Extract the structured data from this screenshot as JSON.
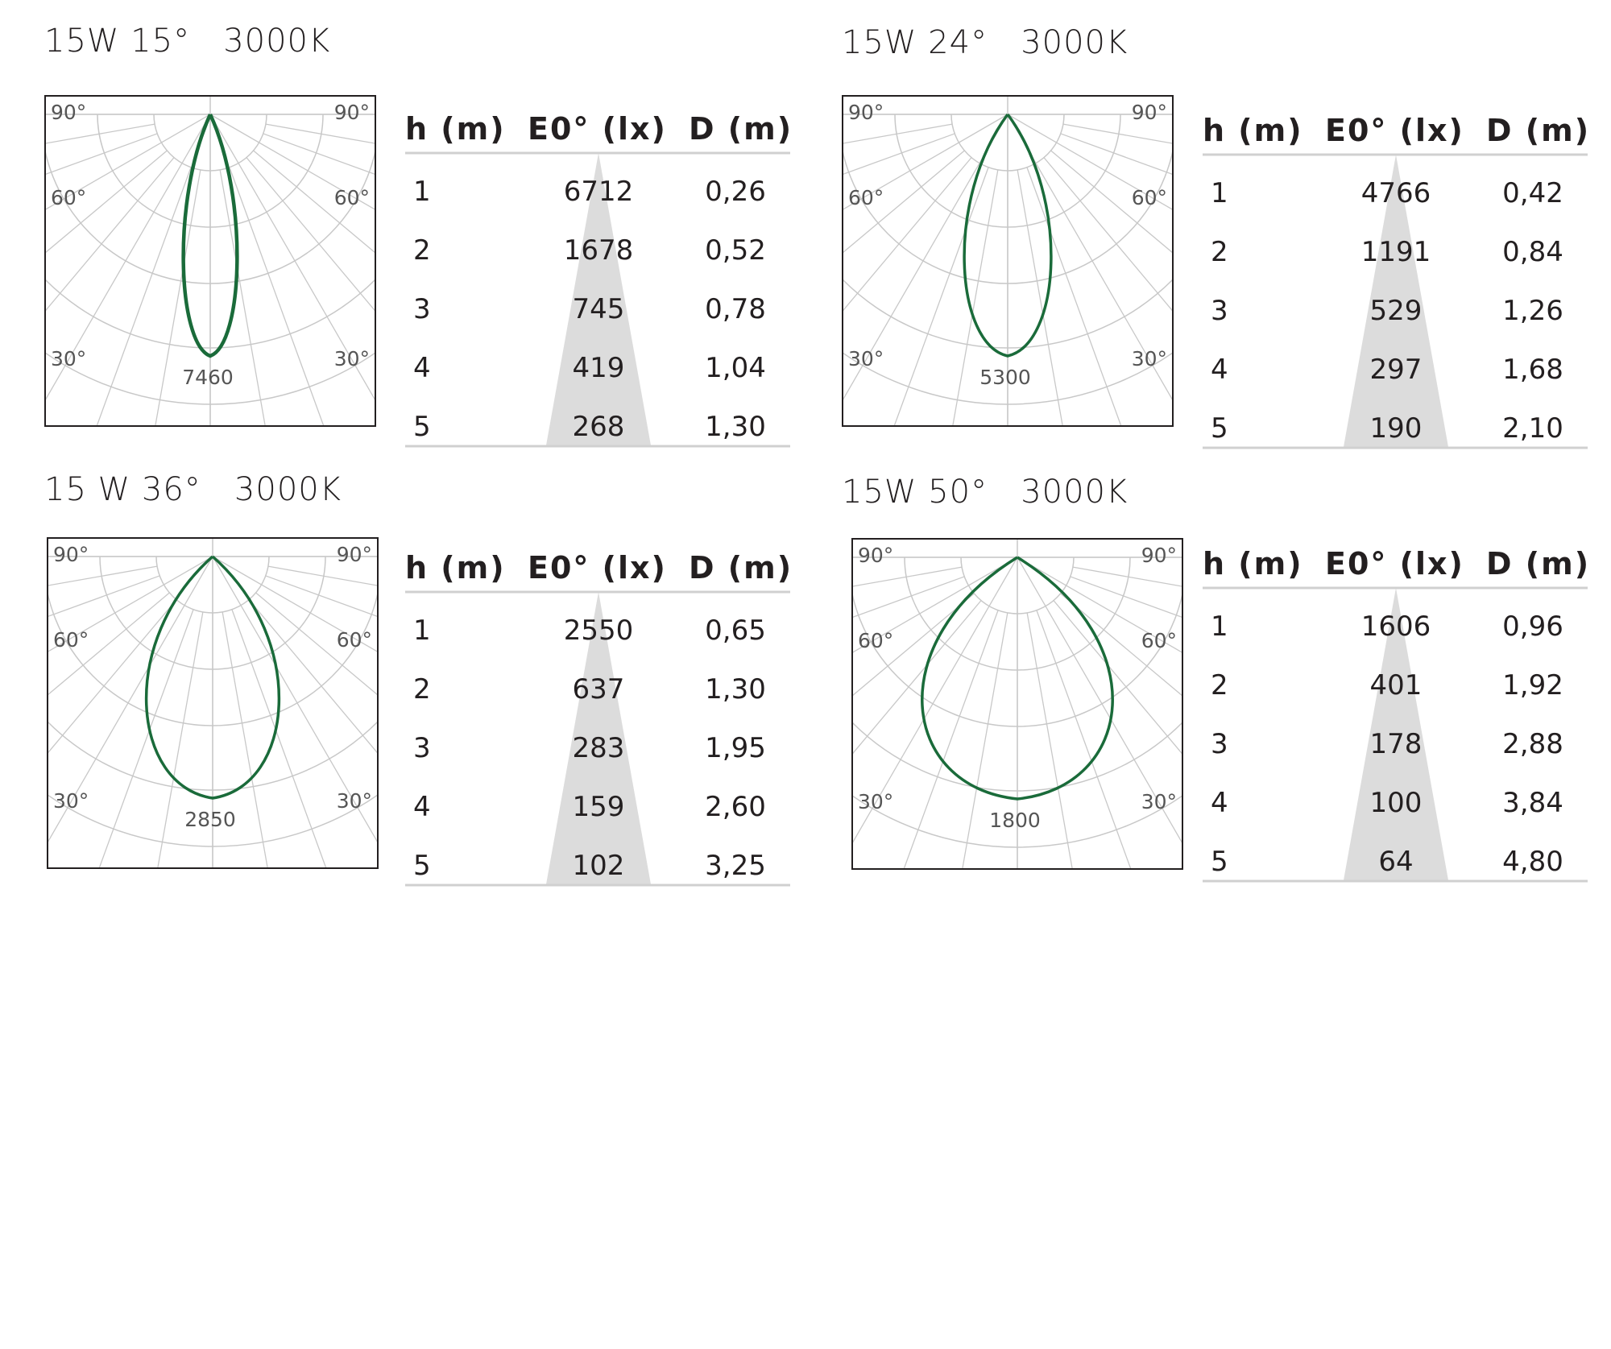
{
  "colors": {
    "curve": "#1a6b3a",
    "grid": "#c8c8c8",
    "cone": "#dcdcdc",
    "frame": "#231f20"
  },
  "table_headers": {
    "h": "h (m)",
    "e": "E0° (lx)",
    "d": "D (m)"
  },
  "angle_labels": {
    "a90": "90°",
    "a60": "60°",
    "a30": "30°"
  },
  "chart_data": [
    {
      "type": "table",
      "title": "15W 15°   3000K",
      "polar": {
        "peak_label": "7460",
        "beam_angle_deg": 15
      },
      "rows": [
        {
          "h": "1",
          "e": "6712",
          "d": "0,26"
        },
        {
          "h": "2",
          "e": "1678",
          "d": "0,52"
        },
        {
          "h": "3",
          "e": "745",
          "d": "0,78"
        },
        {
          "h": "4",
          "e": "419",
          "d": "1,04"
        },
        {
          "h": "5",
          "e": "268",
          "d": "1,30"
        }
      ]
    },
    {
      "type": "table",
      "title": "15W 24°   3000K",
      "polar": {
        "peak_label": "5300",
        "beam_angle_deg": 24
      },
      "rows": [
        {
          "h": "1",
          "e": "4766",
          "d": "0,42"
        },
        {
          "h": "2",
          "e": "1191",
          "d": "0,84"
        },
        {
          "h": "3",
          "e": "529",
          "d": "1,26"
        },
        {
          "h": "4",
          "e": "297",
          "d": "1,68"
        },
        {
          "h": "5",
          "e": "190",
          "d": "2,10"
        }
      ]
    },
    {
      "type": "table",
      "title": "15 W 36°   3000K",
      "polar": {
        "peak_label": "2850",
        "beam_angle_deg": 36
      },
      "rows": [
        {
          "h": "1",
          "e": "2550",
          "d": "0,65"
        },
        {
          "h": "2",
          "e": "637",
          "d": "1,30"
        },
        {
          "h": "3",
          "e": "283",
          "d": "1,95"
        },
        {
          "h": "4",
          "e": "159",
          "d": "2,60"
        },
        {
          "h": "5",
          "e": "102",
          "d": "3,25"
        }
      ]
    },
    {
      "type": "table",
      "title": "15W 50°   3000K",
      "polar": {
        "peak_label": "1800",
        "beam_angle_deg": 50
      },
      "rows": [
        {
          "h": "1",
          "e": "1606",
          "d": "0,96"
        },
        {
          "h": "2",
          "e": "401",
          "d": "1,92"
        },
        {
          "h": "3",
          "e": "178",
          "d": "2,88"
        },
        {
          "h": "4",
          "e": "100",
          "d": "3,84"
        },
        {
          "h": "5",
          "e": "64",
          "d": "4,80"
        }
      ]
    }
  ]
}
